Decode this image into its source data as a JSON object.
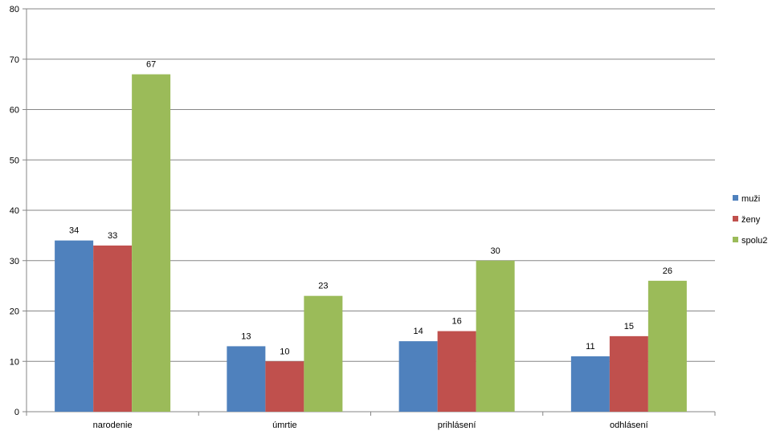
{
  "chart_data": {
    "type": "bar",
    "categories": [
      "narodenie",
      "úmrtie",
      "prihlásení",
      "odhlásení"
    ],
    "series": [
      {
        "name": "muži",
        "values": [
          34,
          13,
          14,
          11
        ],
        "color": "#4F81BD"
      },
      {
        "name": "ženy",
        "values": [
          33,
          10,
          16,
          15
        ],
        "color": "#C0504D"
      },
      {
        "name": "spolu2",
        "values": [
          67,
          23,
          30,
          26
        ],
        "color": "#9BBB59"
      }
    ],
    "ylim": [
      0,
      80
    ],
    "yticks": [
      0,
      10,
      20,
      30,
      40,
      50,
      60,
      70,
      80
    ],
    "grid": true,
    "legend": "right",
    "data_labels": true
  }
}
